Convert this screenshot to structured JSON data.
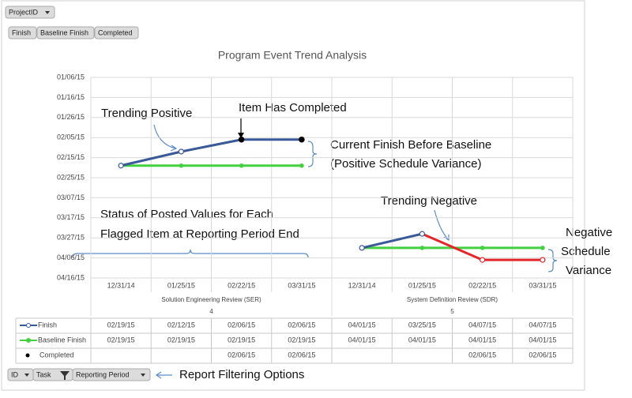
{
  "field_buttons": {
    "top_filter": "ProjectID",
    "series_fields": [
      "Finish",
      "Baseline Finish",
      "Completed"
    ],
    "row_fields": [
      "ID",
      "Task",
      "Reporting Period"
    ]
  },
  "chart_data": {
    "type": "line",
    "title": "Program Event Trend Analysis",
    "y_reversed": true,
    "ylim": [
      "01/06/15",
      "04/16/15"
    ],
    "yticks": [
      "01/06/15",
      "01/16/15",
      "01/26/15",
      "02/05/15",
      "02/15/15",
      "02/25/15",
      "03/07/15",
      "03/17/15",
      "03/27/15",
      "04/06/15",
      "04/16/15"
    ],
    "grid": true,
    "groups": [
      {
        "name": "Solution Engineering Review (SER)",
        "id": "4",
        "categories": [
          "12/31/14",
          "01/25/15",
          "02/22/15",
          "03/31/15"
        ]
      },
      {
        "name": "System Definition Review (SDR)",
        "id": "5",
        "categories": [
          "12/31/14",
          "01/25/15",
          "02/22/15",
          "03/31/15"
        ]
      }
    ],
    "late_color": "#e3262b",
    "series": [
      {
        "name": "Finish",
        "color": "#3a5998",
        "marker": "hollow",
        "values": [
          "02/19/15",
          "02/12/15",
          "02/06/15",
          "02/06/15",
          "04/01/15",
          "03/25/15",
          "04/07/15",
          "04/07/15"
        ]
      },
      {
        "name": "Baseline Finish",
        "color": "#45d042",
        "marker": "filled",
        "values": [
          "02/19/15",
          "02/19/15",
          "02/19/15",
          "02/19/15",
          "04/01/15",
          "04/01/15",
          "04/01/15",
          "04/01/15"
        ]
      },
      {
        "name": "Completed",
        "color": "#000000",
        "marker": "dot",
        "values": [
          null,
          null,
          "02/06/15",
          "02/06/15",
          null,
          null,
          "02/06/15",
          "02/06/15"
        ]
      }
    ],
    "annotations": [
      "Trending Positive",
      "Item Has Completed",
      "Current Finish Before Baseline",
      "(Positive Schedule Variance)",
      "Trending Negative",
      "Status of Posted Values for Each",
      "Flagged Item at Reporting Period End",
      "Negative",
      "Schedule",
      "Variance",
      "Report Filtering Options"
    ]
  }
}
